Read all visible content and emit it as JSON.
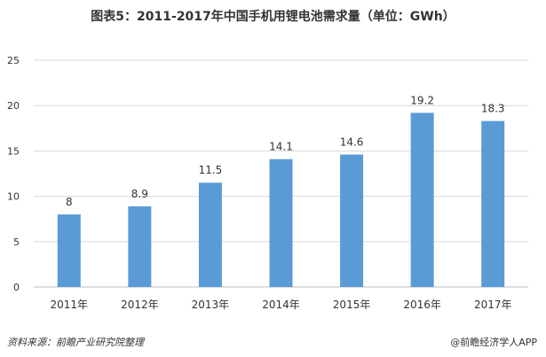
{
  "title": "图表5：2011-2017年中国手机用锂电池需求量（单位：GWh）",
  "source_note": "资料来源：前瞻产业研究院整理",
  "brand": "@前瞻经济学人APP",
  "chart_data": {
    "type": "bar",
    "title": "图表5：2011-2017年中国手机用锂电池需求量（单位：GWh）",
    "categories": [
      "2011年",
      "2012年",
      "2013年",
      "2014年",
      "2015年",
      "2016年",
      "2017年"
    ],
    "values": [
      8,
      8.9,
      11.5,
      14.1,
      14.6,
      19.2,
      18.3
    ],
    "data_labels": [
      "8",
      "8.9",
      "11.5",
      "14.1",
      "14.6",
      "19.2",
      "18.3"
    ],
    "ylim": [
      0,
      25
    ],
    "yticks": [
      0,
      5,
      10,
      15,
      20,
      25
    ],
    "grid": true,
    "bar_color": "#5b9bd5",
    "grid_color": "#d9d9d9"
  }
}
